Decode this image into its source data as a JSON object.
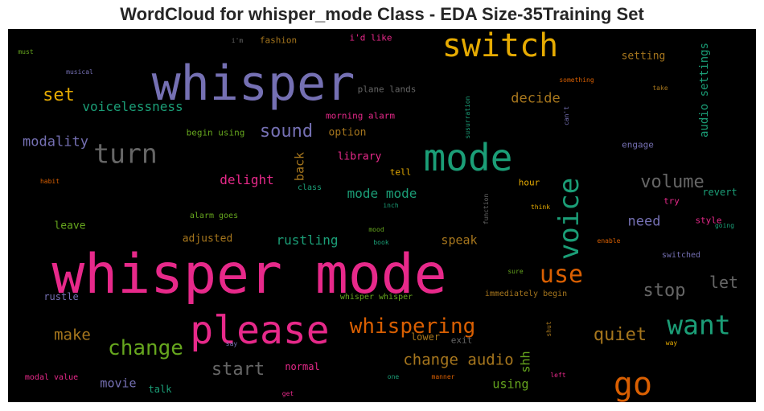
{
  "title": "WordCloud for whisper_mode Class - EDA Size-35Training Set",
  "chart_data": {
    "type": "wordcloud",
    "title": "WordCloud for whisper_mode Class - EDA Size-35Training Set",
    "background": "#000000",
    "words": [
      {
        "text": "whisper mode",
        "color": "#e7298a"
      },
      {
        "text": "whisper",
        "color": "#7570b3"
      },
      {
        "text": "mode",
        "color": "#1b9e77"
      },
      {
        "text": "please",
        "color": "#e7298a"
      },
      {
        "text": "switch",
        "color": "#e6ab02"
      },
      {
        "text": "voice",
        "color": "#1b9e77"
      },
      {
        "text": "turn",
        "color": "#666666"
      },
      {
        "text": "go",
        "color": "#d95f02"
      },
      {
        "text": "want",
        "color": "#1b9e77"
      },
      {
        "text": "change",
        "color": "#66a61e"
      },
      {
        "text": "use",
        "color": "#d95f02"
      },
      {
        "text": "whispering",
        "color": "#d95f02"
      },
      {
        "text": "sound",
        "color": "#7570b3"
      },
      {
        "text": "volume",
        "color": "#666666"
      },
      {
        "text": "stop",
        "color": "#666666"
      },
      {
        "text": "quiet",
        "color": "#a6761d"
      },
      {
        "text": "start",
        "color": "#666666"
      },
      {
        "text": "let",
        "color": "#666666"
      },
      {
        "text": "set",
        "color": "#e6ab02"
      },
      {
        "text": "make",
        "color": "#a6761d"
      },
      {
        "text": "change audio",
        "color": "#a6761d"
      },
      {
        "text": "modality",
        "color": "#7570b3"
      },
      {
        "text": "voicelessness",
        "color": "#1b9e77"
      },
      {
        "text": "decide",
        "color": "#a6761d"
      },
      {
        "text": "audio settings",
        "color": "#1b9e77"
      },
      {
        "text": "need",
        "color": "#7570b3"
      },
      {
        "text": "mode mode",
        "color": "#1b9e77"
      },
      {
        "text": "rustling",
        "color": "#1b9e77"
      },
      {
        "text": "delight",
        "color": "#e7298a"
      },
      {
        "text": "speak",
        "color": "#a6761d"
      },
      {
        "text": "back",
        "color": "#a6761d"
      },
      {
        "text": "shh",
        "color": "#66a61e"
      },
      {
        "text": "movie",
        "color": "#7570b3"
      },
      {
        "text": "using",
        "color": "#66a61e"
      },
      {
        "text": "setting",
        "color": "#a6761d"
      },
      {
        "text": "library",
        "color": "#e7298a"
      },
      {
        "text": "option",
        "color": "#a6761d"
      },
      {
        "text": "adjusted",
        "color": "#a6761d"
      },
      {
        "text": "leave",
        "color": "#66a61e"
      },
      {
        "text": "revert",
        "color": "#1b9e77"
      },
      {
        "text": "engage",
        "color": "#7570b3"
      },
      {
        "text": "rustle",
        "color": "#7570b3"
      },
      {
        "text": "talk",
        "color": "#1b9e77"
      },
      {
        "text": "normal",
        "color": "#e7298a"
      },
      {
        "text": "lower",
        "color": "#a6761d"
      },
      {
        "text": "exit",
        "color": "#666666"
      },
      {
        "text": "fashion",
        "color": "#a6761d"
      },
      {
        "text": "i'd like",
        "color": "#e7298a"
      },
      {
        "text": "plane lands",
        "color": "#666666"
      },
      {
        "text": "morning alarm",
        "color": "#e7298a"
      },
      {
        "text": "begin using",
        "color": "#66a61e"
      },
      {
        "text": "tell",
        "color": "#e6ab02"
      },
      {
        "text": "class",
        "color": "#1b9e77"
      },
      {
        "text": "alarm goes",
        "color": "#66a61e"
      },
      {
        "text": "hour",
        "color": "#e6ab02"
      },
      {
        "text": "try",
        "color": "#e7298a"
      },
      {
        "text": "style",
        "color": "#e7298a"
      },
      {
        "text": "switched",
        "color": "#7570b3"
      },
      {
        "text": "whisper whisper",
        "color": "#66a61e"
      },
      {
        "text": "immediately begin",
        "color": "#a6761d"
      },
      {
        "text": "modal value",
        "color": "#e7298a"
      },
      {
        "text": "must",
        "color": "#66a61e"
      },
      {
        "text": "musical",
        "color": "#7570b3"
      },
      {
        "text": "i'm",
        "color": "#666666"
      },
      {
        "text": "something",
        "color": "#d95f02"
      },
      {
        "text": "take",
        "color": "#a6761d"
      },
      {
        "text": "susurration",
        "color": "#1b9e77"
      },
      {
        "text": "can't",
        "color": "#7570b3"
      },
      {
        "text": "habit",
        "color": "#d95f02"
      },
      {
        "text": "inch",
        "color": "#1b9e77"
      },
      {
        "text": "function",
        "color": "#666666"
      },
      {
        "text": "think",
        "color": "#e6ab02"
      },
      {
        "text": "going",
        "color": "#1b9e77"
      },
      {
        "text": "mood",
        "color": "#66a61e"
      },
      {
        "text": "book",
        "color": "#1b9e77"
      },
      {
        "text": "enable",
        "color": "#d95f02"
      },
      {
        "text": "sure",
        "color": "#66a61e"
      },
      {
        "text": "shut",
        "color": "#a6761d"
      },
      {
        "text": "way",
        "color": "#e6ab02"
      },
      {
        "text": "say",
        "color": "#7570b3"
      },
      {
        "text": "one",
        "color": "#1b9e77"
      },
      {
        "text": "manner",
        "color": "#d95f02"
      },
      {
        "text": "left",
        "color": "#e7298a"
      },
      {
        "text": "get",
        "color": "#e7298a"
      }
    ]
  }
}
